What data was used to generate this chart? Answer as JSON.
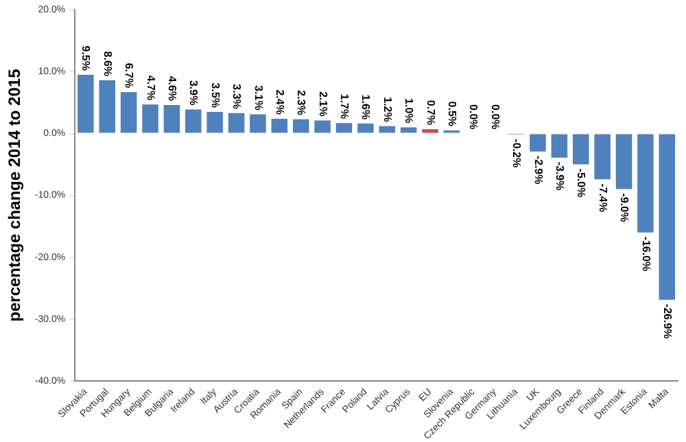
{
  "chart_data": {
    "type": "bar",
    "ylabel": "percentage change 2014 to 2015",
    "categories": [
      "Slovakia",
      "Portugal",
      "Hungary",
      "Belgium",
      "Bulgaria",
      "Ireland",
      "Italy",
      "Austria",
      "Croatia",
      "Romania",
      "Spain",
      "Netherlands",
      "France",
      "Poland",
      "Latvia",
      "Cyprus",
      "EU",
      "Slovenia",
      "Czech Republic",
      "Germany",
      "Lithuania",
      "UK",
      "Luxembourg",
      "Greece",
      "Finland",
      "Denmark",
      "Estonia",
      "Malta"
    ],
    "values": [
      9.5,
      8.6,
      6.7,
      4.7,
      4.6,
      3.9,
      3.5,
      3.3,
      3.1,
      2.4,
      2.3,
      2.1,
      1.7,
      1.6,
      1.2,
      1.0,
      0.7,
      0.5,
      0.0,
      0.0,
      -0.2,
      -2.9,
      -3.9,
      -5.0,
      -7.4,
      -9.0,
      -16.0,
      -26.9
    ],
    "colors": [
      "#4f81bd",
      "#4f81bd",
      "#4f81bd",
      "#4f81bd",
      "#4f81bd",
      "#4f81bd",
      "#4f81bd",
      "#4f81bd",
      "#4f81bd",
      "#4f81bd",
      "#4f81bd",
      "#4f81bd",
      "#4f81bd",
      "#4f81bd",
      "#4f81bd",
      "#4f81bd",
      "#c0504d",
      "#4f81bd",
      "#4f81bd",
      "#4f81bd",
      "#4f81bd",
      "#4f81bd",
      "#4f81bd",
      "#4f81bd",
      "#4f81bd",
      "#4f81bd",
      "#4f81bd",
      "#4f81bd"
    ],
    "value_labels": [
      "9.5%",
      "8.6%",
      "6.7%",
      "4.7%",
      "4.6%",
      "3.9%",
      "3.5%",
      "3.3%",
      "3.1%",
      "2.4%",
      "2.3%",
      "2.1%",
      "1.7%",
      "1.6%",
      "1.2%",
      "1.0%",
      "0.7%",
      "0.5%",
      "0.0%",
      "0.0%",
      "-0.2%",
      "-2.9%",
      "-3.9%",
      "-5.0%",
      "-7.4%",
      "-9.0%",
      "-16.0%",
      "-26.9%"
    ],
    "ylim": [
      -40,
      20
    ],
    "yticks": [
      {
        "value": -40,
        "label": "-40.0%"
      },
      {
        "value": -30,
        "label": "-30.0%"
      },
      {
        "value": -20,
        "label": "-20.0%"
      },
      {
        "value": -10,
        "label": "-10.0%"
      },
      {
        "value": 0,
        "label": "0.0%"
      },
      {
        "value": 10,
        "label": "10.0%"
      },
      {
        "value": 20,
        "label": "20.0%"
      }
    ],
    "grid": false,
    "legend": false
  }
}
